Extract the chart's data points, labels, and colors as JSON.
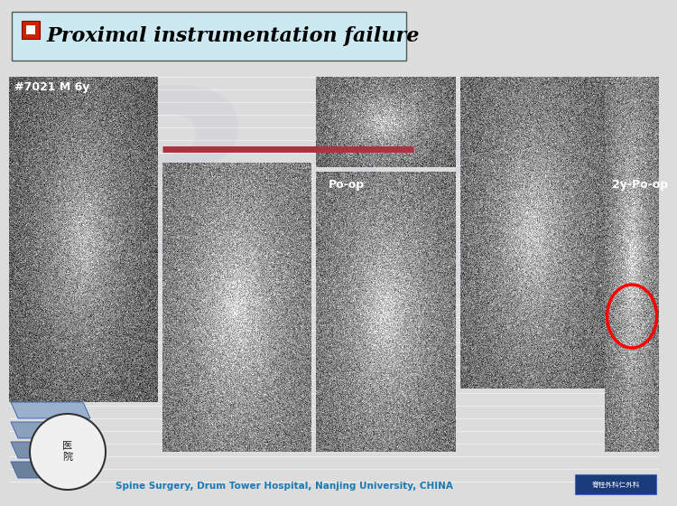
{
  "title": "Proximal instrumentation failure",
  "title_box_facecolor": "#cce8f0",
  "title_box_edgecolor": "#555555",
  "title_icon_fill": "#cc2200",
  "bg_color": "#dcdcdc",
  "subtitle_text": "#7021 M 6y",
  "label_po_op": "Po-op",
  "label_2y": "2y-Po-op",
  "footer_text": "Spine Surgery, Drum Tower Hospital, Nanjing University, CHINA",
  "footer_color": "#1a7ab5",
  "red_bar_color": "#b03040",
  "badge_bg": "#1a3a7a",
  "badge_text": "脊柱外科仁外科",
  "badge_edge": "#4466bb"
}
